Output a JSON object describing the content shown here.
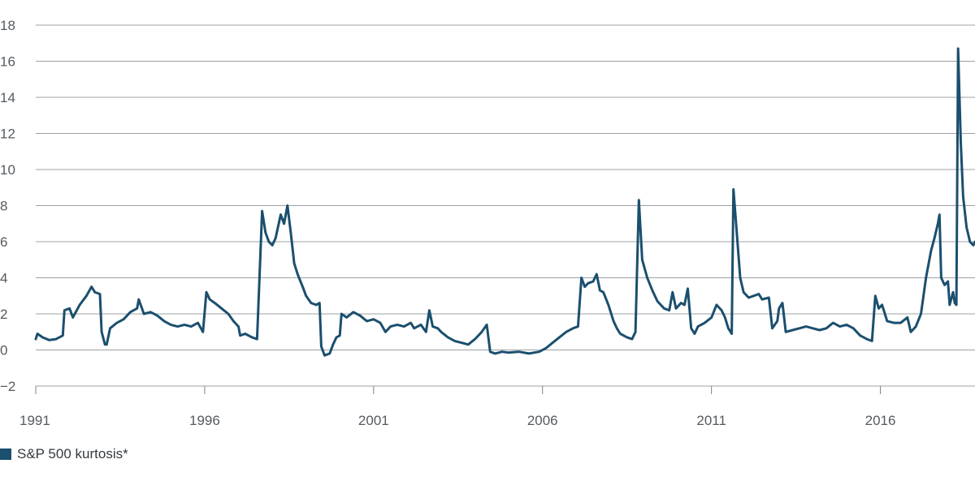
{
  "chart_data": {
    "type": "line",
    "title": "",
    "xlabel": "",
    "ylabel": "",
    "xlim": [
      1991.0,
      2018.8
    ],
    "ylim": [
      -2,
      18
    ],
    "y_ticks": [
      -2,
      0,
      2,
      4,
      6,
      8,
      10,
      12,
      14,
      16,
      18
    ],
    "y_tick_labels": [
      "−2",
      "0",
      "2",
      "4",
      "6",
      "8",
      "10",
      "12",
      "14",
      "16",
      "18"
    ],
    "x_ticks": [
      1991,
      1996,
      2001,
      2006,
      2011,
      2016
    ],
    "x_tick_labels": [
      "1991",
      "1996",
      "2001",
      "2006",
      "2011",
      "2016"
    ],
    "grid": "horizontal",
    "legend_position": "bottom-left",
    "series": [
      {
        "name": "S&P 500 kurtosis*",
        "color": "#1b4f6e",
        "points": [
          [
            1991.0,
            0.6
          ],
          [
            1991.05,
            0.9
          ],
          [
            1991.2,
            0.7
          ],
          [
            1991.4,
            0.55
          ],
          [
            1991.6,
            0.6
          ],
          [
            1991.8,
            0.8
          ],
          [
            1991.85,
            2.2
          ],
          [
            1992.0,
            2.3
          ],
          [
            1992.1,
            1.8
          ],
          [
            1992.3,
            2.5
          ],
          [
            1992.5,
            3.0
          ],
          [
            1992.65,
            3.5
          ],
          [
            1992.75,
            3.2
          ],
          [
            1992.9,
            3.1
          ],
          [
            1992.95,
            1.0
          ],
          [
            1993.05,
            0.3
          ],
          [
            1993.1,
            0.3
          ],
          [
            1993.2,
            1.2
          ],
          [
            1993.4,
            1.5
          ],
          [
            1993.6,
            1.7
          ],
          [
            1993.8,
            2.1
          ],
          [
            1994.0,
            2.3
          ],
          [
            1994.05,
            2.8
          ],
          [
            1994.2,
            2.0
          ],
          [
            1994.4,
            2.1
          ],
          [
            1994.6,
            1.9
          ],
          [
            1994.8,
            1.6
          ],
          [
            1995.0,
            1.4
          ],
          [
            1995.2,
            1.3
          ],
          [
            1995.4,
            1.4
          ],
          [
            1995.6,
            1.3
          ],
          [
            1995.8,
            1.5
          ],
          [
            1995.95,
            1.0
          ],
          [
            1996.05,
            3.2
          ],
          [
            1996.15,
            2.8
          ],
          [
            1996.3,
            2.6
          ],
          [
            1996.5,
            2.3
          ],
          [
            1996.7,
            2.0
          ],
          [
            1996.85,
            1.6
          ],
          [
            1997.0,
            1.3
          ],
          [
            1997.05,
            0.8
          ],
          [
            1997.2,
            0.9
          ],
          [
            1997.4,
            0.7
          ],
          [
            1997.55,
            0.6
          ],
          [
            1997.7,
            7.7
          ],
          [
            1997.8,
            6.5
          ],
          [
            1997.9,
            6.0
          ],
          [
            1998.0,
            5.8
          ],
          [
            1998.1,
            6.2
          ],
          [
            1998.25,
            7.5
          ],
          [
            1998.35,
            7.0
          ],
          [
            1998.45,
            8.0
          ],
          [
            1998.55,
            6.5
          ],
          [
            1998.65,
            4.8
          ],
          [
            1998.75,
            4.2
          ],
          [
            1998.9,
            3.5
          ],
          [
            1999.0,
            3.0
          ],
          [
            1999.15,
            2.6
          ],
          [
            1999.3,
            2.5
          ],
          [
            1999.4,
            2.6
          ],
          [
            1999.45,
            0.2
          ],
          [
            1999.55,
            -0.3
          ],
          [
            1999.7,
            -0.2
          ],
          [
            1999.8,
            0.3
          ],
          [
            1999.9,
            0.7
          ],
          [
            2000.0,
            0.8
          ],
          [
            2000.05,
            2.0
          ],
          [
            2000.2,
            1.8
          ],
          [
            2000.4,
            2.1
          ],
          [
            2000.6,
            1.9
          ],
          [
            2000.8,
            1.6
          ],
          [
            2001.0,
            1.7
          ],
          [
            2001.2,
            1.5
          ],
          [
            2001.35,
            1.0
          ],
          [
            2001.5,
            1.3
          ],
          [
            2001.7,
            1.4
          ],
          [
            2001.9,
            1.3
          ],
          [
            2002.1,
            1.5
          ],
          [
            2002.2,
            1.2
          ],
          [
            2002.4,
            1.4
          ],
          [
            2002.55,
            1.0
          ],
          [
            2002.65,
            2.2
          ],
          [
            2002.75,
            1.3
          ],
          [
            2002.9,
            1.2
          ],
          [
            2003.0,
            1.0
          ],
          [
            2003.2,
            0.7
          ],
          [
            2003.4,
            0.5
          ],
          [
            2003.6,
            0.4
          ],
          [
            2003.8,
            0.3
          ],
          [
            2004.0,
            0.6
          ],
          [
            2004.2,
            1.0
          ],
          [
            2004.35,
            1.4
          ],
          [
            2004.45,
            -0.1
          ],
          [
            2004.6,
            -0.2
          ],
          [
            2004.8,
            -0.1
          ],
          [
            2005.0,
            -0.15
          ],
          [
            2005.3,
            -0.1
          ],
          [
            2005.6,
            -0.2
          ],
          [
            2005.9,
            -0.1
          ],
          [
            2006.1,
            0.1
          ],
          [
            2006.3,
            0.4
          ],
          [
            2006.5,
            0.7
          ],
          [
            2006.7,
            1.0
          ],
          [
            2006.9,
            1.2
          ],
          [
            2007.05,
            1.3
          ],
          [
            2007.15,
            4.0
          ],
          [
            2007.25,
            3.5
          ],
          [
            2007.35,
            3.7
          ],
          [
            2007.5,
            3.8
          ],
          [
            2007.6,
            4.2
          ],
          [
            2007.7,
            3.3
          ],
          [
            2007.8,
            3.2
          ],
          [
            2007.95,
            2.5
          ],
          [
            2008.1,
            1.6
          ],
          [
            2008.2,
            1.2
          ],
          [
            2008.3,
            0.9
          ],
          [
            2008.5,
            0.7
          ],
          [
            2008.65,
            0.6
          ],
          [
            2008.75,
            1.0
          ],
          [
            2008.85,
            8.3
          ],
          [
            2008.95,
            5.0
          ],
          [
            2009.1,
            4.0
          ],
          [
            2009.25,
            3.3
          ],
          [
            2009.4,
            2.7
          ],
          [
            2009.6,
            2.3
          ],
          [
            2009.75,
            2.2
          ],
          [
            2009.85,
            3.2
          ],
          [
            2009.95,
            2.3
          ],
          [
            2010.1,
            2.6
          ],
          [
            2010.2,
            2.5
          ],
          [
            2010.3,
            3.4
          ],
          [
            2010.4,
            1.2
          ],
          [
            2010.5,
            0.9
          ],
          [
            2010.6,
            1.3
          ],
          [
            2010.8,
            1.5
          ],
          [
            2011.0,
            1.8
          ],
          [
            2011.15,
            2.5
          ],
          [
            2011.3,
            2.2
          ],
          [
            2011.4,
            1.8
          ],
          [
            2011.5,
            1.2
          ],
          [
            2011.6,
            0.9
          ],
          [
            2011.65,
            8.9
          ],
          [
            2011.75,
            6.5
          ],
          [
            2011.85,
            4.0
          ],
          [
            2011.95,
            3.2
          ],
          [
            2012.1,
            2.9
          ],
          [
            2012.25,
            3.0
          ],
          [
            2012.4,
            3.1
          ],
          [
            2012.5,
            2.8
          ],
          [
            2012.7,
            2.9
          ],
          [
            2012.8,
            1.2
          ],
          [
            2012.95,
            1.6
          ],
          [
            2013.0,
            2.3
          ],
          [
            2013.1,
            2.6
          ],
          [
            2013.2,
            1.0
          ],
          [
            2013.4,
            1.1
          ],
          [
            2013.6,
            1.2
          ],
          [
            2013.8,
            1.3
          ],
          [
            2014.0,
            1.2
          ],
          [
            2014.2,
            1.1
          ],
          [
            2014.4,
            1.2
          ],
          [
            2014.6,
            1.5
          ],
          [
            2014.8,
            1.3
          ],
          [
            2015.0,
            1.4
          ],
          [
            2015.2,
            1.2
          ],
          [
            2015.4,
            0.8
          ],
          [
            2015.6,
            0.6
          ],
          [
            2015.75,
            0.5
          ],
          [
            2015.85,
            3.0
          ],
          [
            2015.95,
            2.3
          ],
          [
            2016.05,
            2.5
          ],
          [
            2016.2,
            1.6
          ],
          [
            2016.4,
            1.5
          ],
          [
            2016.6,
            1.5
          ],
          [
            2016.8,
            1.8
          ],
          [
            2016.9,
            1.0
          ],
          [
            2017.05,
            1.3
          ],
          [
            2017.2,
            2.0
          ],
          [
            2017.35,
            4.0
          ],
          [
            2017.5,
            5.5
          ],
          [
            2017.6,
            6.2
          ],
          [
            2017.7,
            7.0
          ],
          [
            2017.75,
            7.5
          ],
          [
            2017.8,
            4.0
          ],
          [
            2017.9,
            3.6
          ],
          [
            2018.0,
            3.8
          ],
          [
            2018.05,
            2.5
          ],
          [
            2018.15,
            3.2
          ],
          [
            2018.2,
            2.6
          ],
          [
            2018.25,
            2.5
          ],
          [
            2018.3,
            16.7
          ],
          [
            2018.38,
            11.5
          ],
          [
            2018.45,
            8.5
          ],
          [
            2018.55,
            6.8
          ],
          [
            2018.65,
            6.0
          ],
          [
            2018.75,
            5.8
          ],
          [
            2018.8,
            6.0
          ]
        ]
      }
    ]
  }
}
